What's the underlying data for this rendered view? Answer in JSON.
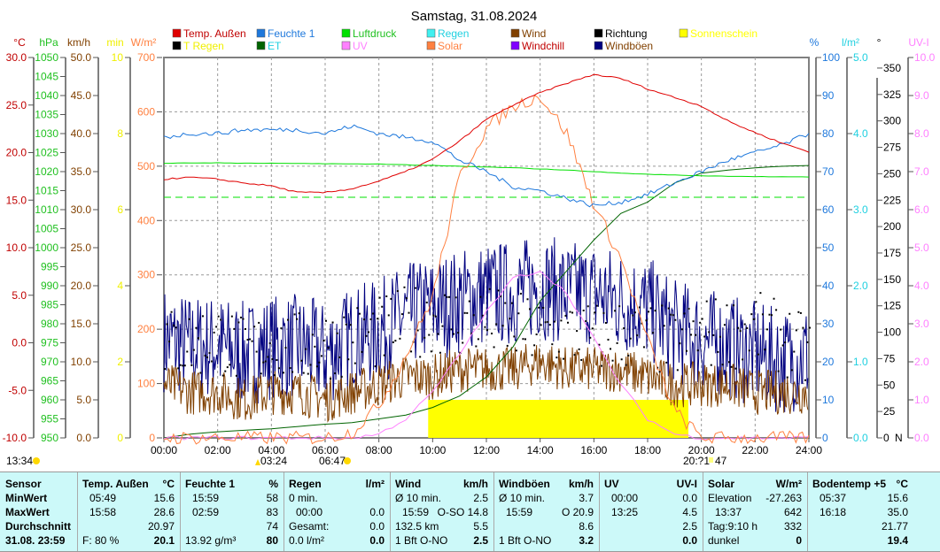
{
  "title": "Samstag, 31.08.2024",
  "legend": [
    {
      "label": "Temp. Außen",
      "color": "#e00000",
      "text": "#c00000"
    },
    {
      "label": "T Regen",
      "color": "#000000",
      "text": "#f0f000"
    },
    {
      "label": "Feuchte 1",
      "color": "#1e78dc",
      "text": "#1e78dc"
    },
    {
      "label": "ET",
      "color": "#006400",
      "text": "#20d0e0"
    },
    {
      "label": "Luftdruck",
      "color": "#00e000",
      "text": "#20c020"
    },
    {
      "label": "UV",
      "color": "#ff80ff",
      "text": "#ff80ff"
    },
    {
      "label": "Regen",
      "color": "#40f0f0",
      "text": "#20d0e0"
    },
    {
      "label": "Solar",
      "color": "#ff8040",
      "text": "#ff8040"
    },
    {
      "label": "Wind",
      "color": "#804000",
      "text": "#804000"
    },
    {
      "label": "Windchill",
      "color": "#8000ff",
      "text": "#c00000"
    },
    {
      "label": "Richtung",
      "color": "#000000",
      "text": "#000000"
    },
    {
      "label": "Windböen",
      "color": "#000080",
      "text": "#804000"
    },
    {
      "label": "Sonnenschein",
      "color": "#ffff00",
      "text": "#ffff00"
    }
  ],
  "astro": {
    "sun_culmination": "13:34",
    "moonrise": "03:24",
    "sunrise": "06:47",
    "moonset": "20:?1",
    "sunset_suffix": "47"
  },
  "chart_data": {
    "type": "line",
    "title": "Samstag, 31.08.2024",
    "x_ticks": [
      "00:00",
      "02:00",
      "04:00",
      "06:00",
      "08:00",
      "10:00",
      "12:00",
      "14:00",
      "16:00",
      "18:00",
      "20:00",
      "22:00",
      "24:00"
    ],
    "axes": [
      {
        "unit": "°C",
        "min": -10,
        "max": 30,
        "step": 5,
        "decimals": 1,
        "side": "left",
        "color": "#c00000"
      },
      {
        "unit": "hPa",
        "min": 950,
        "max": 1050,
        "step": 5,
        "decimals": 0,
        "side": "left",
        "color": "#20c020"
      },
      {
        "unit": "km/h",
        "min": 0,
        "max": 50,
        "step": 5,
        "decimals": 1,
        "side": "left",
        "color": "#804000"
      },
      {
        "unit": "min",
        "min": 0,
        "max": 10,
        "step": 2,
        "decimals": 0,
        "side": "left",
        "color": "#f0f000"
      },
      {
        "unit": "W/m²",
        "min": 0,
        "max": 700,
        "step": 100,
        "decimals": 0,
        "side": "left",
        "color": "#ff8040"
      },
      {
        "unit": "%",
        "min": 0,
        "max": 100,
        "step": 10,
        "decimals": 0,
        "side": "right",
        "color": "#1e78dc"
      },
      {
        "unit": "l/m²",
        "min": 0,
        "max": 5,
        "step": 1,
        "decimals": 1,
        "side": "right",
        "color": "#20d0e0"
      },
      {
        "unit": "°",
        "min": 0,
        "max": 350,
        "step": 25,
        "decimals": 0,
        "side": "right",
        "color": "#000000",
        "zero_label": "N"
      },
      {
        "unit": "UV-I",
        "min": 0,
        "max": 10,
        "step": 1,
        "decimals": 1,
        "side": "right",
        "color": "#ff80ff"
      }
    ],
    "hours": [
      0,
      1,
      2,
      3,
      4,
      5,
      6,
      7,
      8,
      9,
      10,
      11,
      12,
      13,
      14,
      15,
      16,
      17,
      18,
      19,
      20,
      21,
      22,
      23,
      24
    ],
    "series": [
      {
        "name": "Temp. Außen",
        "unit": "°C",
        "values": [
          17.2,
          17.4,
          17.2,
          16.8,
          16.5,
          15.8,
          15.8,
          16.2,
          17.0,
          18.0,
          19.3,
          21.2,
          23.5,
          25.0,
          26.3,
          27.3,
          28.2,
          27.8,
          26.7,
          25.8,
          24.9,
          23.3,
          22.1,
          21.0,
          20.1
        ]
      },
      {
        "name": "Feuchte 1",
        "unit": "%",
        "values": [
          79,
          80,
          80,
          81,
          81,
          81,
          80,
          82,
          80,
          79,
          78,
          73,
          70,
          66,
          65,
          63,
          61,
          62,
          64,
          67,
          70,
          73,
          75,
          77,
          80
        ]
      },
      {
        "name": "Luftdruck",
        "unit": "hPa",
        "values": [
          1022.2,
          1022.3,
          1022.3,
          1022.2,
          1022.2,
          1022.1,
          1022.1,
          1022.0,
          1022.0,
          1021.8,
          1021.6,
          1021.4,
          1021.2,
          1021.0,
          1020.7,
          1020.4,
          1020.0,
          1019.6,
          1019.3,
          1019.1,
          1018.9,
          1018.8,
          1018.7,
          1018.6,
          1018.6
        ]
      },
      {
        "name": "Solar",
        "unit": "W/m²",
        "values": [
          0,
          0,
          0,
          0,
          0,
          0,
          0,
          10,
          60,
          150,
          260,
          480,
          570,
          610,
          630,
          560,
          430,
          330,
          180,
          50,
          0,
          0,
          0,
          0,
          0
        ]
      },
      {
        "name": "UV",
        "unit": "UV-I",
        "values": [
          0,
          0,
          0,
          0,
          0,
          0,
          0,
          0,
          0.1,
          0.5,
          1.2,
          2.2,
          3.3,
          4.2,
          4.4,
          3.8,
          2.6,
          1.4,
          0.5,
          0.1,
          0,
          0,
          0,
          0,
          0
        ]
      },
      {
        "name": "ET",
        "unit": "l/m²",
        "values": [
          0,
          0.05,
          0.08,
          0.1,
          0.12,
          0.15,
          0.18,
          0.2,
          0.25,
          0.3,
          0.4,
          0.55,
          0.8,
          1.2,
          1.8,
          2.2,
          2.6,
          2.95,
          3.1,
          3.35,
          3.48,
          3.52,
          3.55,
          3.57,
          3.58
        ]
      },
      {
        "name": "Wind",
        "unit": "km/h",
        "values": [
          7,
          6,
          6,
          5,
          6,
          6,
          5,
          6,
          7,
          8,
          8,
          9,
          9,
          9,
          10,
          9,
          9,
          9,
          8,
          7,
          7,
          7,
          6,
          6,
          6
        ]
      },
      {
        "name": "Windböen",
        "unit": "km/h",
        "values": [
          13,
          12,
          12,
          11,
          12,
          12,
          11,
          13,
          14,
          16,
          17,
          18,
          19,
          19,
          20,
          19,
          19,
          18,
          17,
          14,
          13,
          12,
          11,
          10,
          11
        ]
      },
      {
        "name": "Richtung",
        "unit": "°",
        "values": [
          90,
          90,
          95,
          80,
          90,
          85,
          90,
          95,
          100,
          110,
          115,
          110,
          110,
          105,
          100,
          100,
          95,
          100,
          95,
          90,
          100,
          100,
          105,
          95,
          80
        ]
      },
      {
        "name": "Sonnenschein",
        "unit": "min",
        "values": [
          0,
          0,
          0,
          0,
          0,
          0,
          0,
          0,
          0,
          0,
          0.5,
          1,
          1,
          1,
          1,
          1,
          1,
          1,
          1,
          0.8,
          0,
          0,
          0,
          0,
          0
        ]
      }
    ],
    "reference_pressure": 1013.25
  },
  "table": {
    "columns": [
      {
        "head": "Sensor",
        "unit": "",
        "rows": [
          [
            "MinWert",
            ""
          ],
          [
            "MaxWert",
            ""
          ],
          [
            "Durchschnitt",
            ""
          ],
          [
            "31.08. 23:59",
            ""
          ]
        ],
        "bold_labels": true
      },
      {
        "head": "Temp. Außen",
        "unit": "°C",
        "rows": [
          [
            "05:49",
            "15.6"
          ],
          [
            "15:58",
            "28.6"
          ],
          [
            "",
            "20.97"
          ],
          [
            "F: 80 %",
            "20.1"
          ]
        ]
      },
      {
        "head": "Feuchte 1",
        "unit": "%",
        "rows": [
          [
            "15:59",
            "58"
          ],
          [
            "02:59",
            "83"
          ],
          [
            "",
            "74"
          ],
          [
            "13.92 g/m³",
            "80"
          ]
        ]
      },
      {
        "head": "Regen",
        "unit": "l/m²",
        "rows": [
          [
            "0 min.",
            ""
          ],
          [
            "00:00",
            "0.0"
          ],
          [
            "Gesamt:",
            "0.0"
          ],
          [
            "0.0 l/m²",
            "0.0"
          ]
        ]
      },
      {
        "head": "Wind",
        "unit": "km/h",
        "rows": [
          [
            "Ø 10 min.",
            "2.5"
          ],
          [
            "15:59",
            "O-SO 14.8"
          ],
          [
            "132.5 km",
            "5.5"
          ],
          [
            "1 Bft O-NO",
            "2.5"
          ]
        ]
      },
      {
        "head": "Windböen",
        "unit": "km/h",
        "rows": [
          [
            "Ø 10 min.",
            "3.7"
          ],
          [
            "15:59",
            "O 20.9"
          ],
          [
            "",
            "8.6"
          ],
          [
            "1 Bft O-NO",
            "3.2"
          ]
        ]
      },
      {
        "head": "UV",
        "unit": "UV-I",
        "rows": [
          [
            "00:00",
            "0.0"
          ],
          [
            "13:25",
            "4.5"
          ],
          [
            "",
            "2.5"
          ],
          [
            "",
            "0.0"
          ]
        ]
      },
      {
        "head": "Solar",
        "unit": "W/m²",
        "rows": [
          [
            "Elevation",
            "-27.263"
          ],
          [
            "13:37",
            "642"
          ],
          [
            "Tag:9:10 h",
            "332"
          ],
          [
            "dunkel",
            "0"
          ]
        ]
      },
      {
        "head": "Bodentemp +5",
        "unit": "°C",
        "rows": [
          [
            "05:37",
            "15.6"
          ],
          [
            "16:18",
            "35.0"
          ],
          [
            "",
            "21.77"
          ],
          [
            "",
            "19.4"
          ]
        ]
      }
    ]
  }
}
